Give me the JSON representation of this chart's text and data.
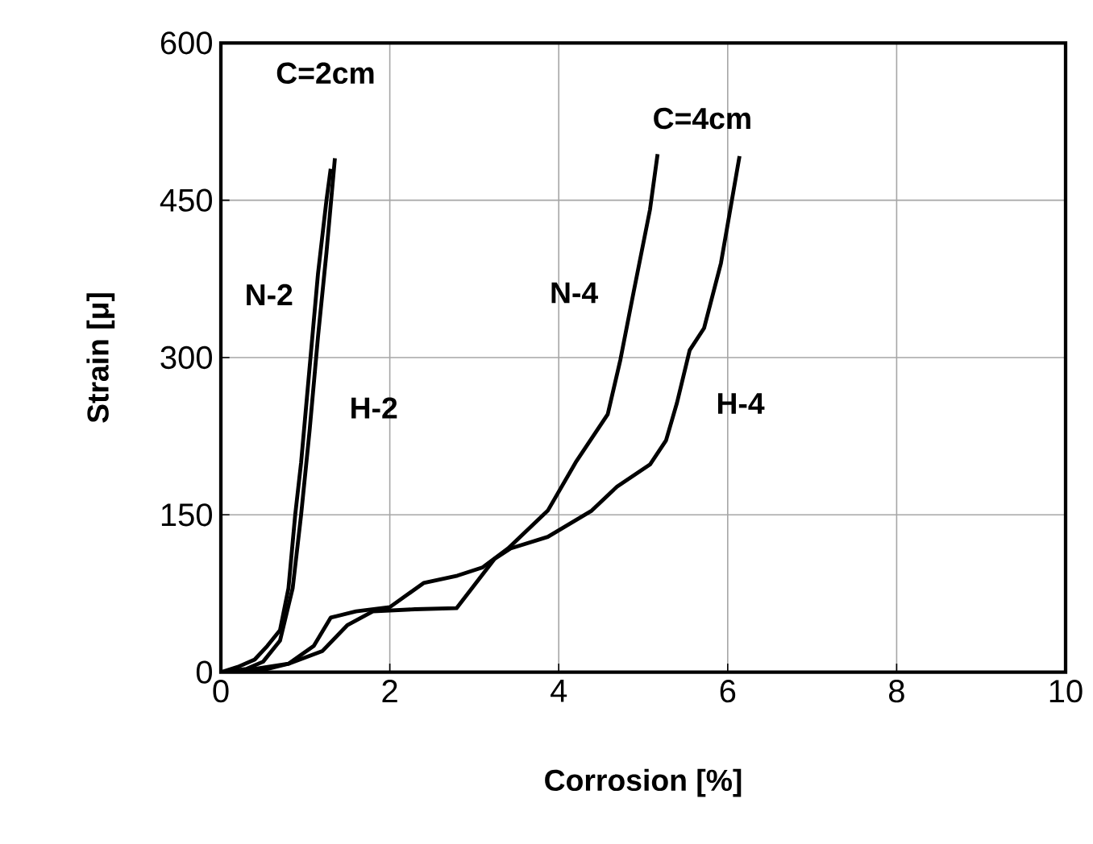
{
  "chart_data": {
    "type": "line",
    "xlabel": "Corrosion [%]",
    "ylabel": "Strain [μ]",
    "xlim": [
      0,
      10
    ],
    "xticks": [
      0,
      2,
      4,
      6,
      8,
      10
    ],
    "ylim": [
      0,
      600
    ],
    "yticks": [
      0,
      150,
      300,
      450,
      600
    ],
    "grid": true,
    "marker": "none",
    "line_style": "solid",
    "series": [
      {
        "name": "N-2",
        "color": "#000000",
        "x": [
          0,
          0.2,
          0.4,
          0.55,
          0.7,
          0.8,
          0.88,
          0.95,
          1.05,
          1.15,
          1.25,
          1.3
        ],
        "values": [
          0,
          5,
          12,
          25,
          40,
          80,
          150,
          200,
          290,
          380,
          450,
          480
        ]
      },
      {
        "name": "H-2",
        "color": "#000000",
        "x": [
          0,
          0.3,
          0.5,
          0.7,
          0.85,
          0.95,
          1.05,
          1.15,
          1.25,
          1.35
        ],
        "values": [
          0,
          3,
          10,
          30,
          80,
          150,
          230,
          320,
          400,
          490
        ]
      },
      {
        "name": "N-4",
        "color": "#000000",
        "x": [
          0,
          0.4,
          0.8,
          1.1,
          1.3,
          1.6,
          2.0,
          2.4,
          2.8,
          3.1,
          3.4,
          3.87,
          4.2,
          4.58,
          4.73,
          4.89,
          5.08,
          5.17
        ],
        "values": [
          0,
          3,
          8,
          25,
          52,
          58,
          62,
          85,
          92,
          100,
          118,
          154,
          200,
          246,
          298,
          364,
          441,
          494
        ]
      },
      {
        "name": "H-4",
        "color": "#000000",
        "x": [
          0,
          0.5,
          0.8,
          1.2,
          1.5,
          1.8,
          2.3,
          2.79,
          3.24,
          3.43,
          3.87,
          4.39,
          4.69,
          5.08,
          5.27,
          5.4,
          5.55,
          5.72,
          5.92,
          6.03,
          6.14
        ],
        "values": [
          0,
          2,
          8,
          20,
          45,
          58,
          60,
          61,
          108,
          118,
          129,
          154,
          177,
          198,
          221,
          257,
          307,
          328,
          390,
          441,
          492
        ]
      }
    ],
    "annotations": [
      "C=2cm",
      "C=4cm"
    ]
  }
}
